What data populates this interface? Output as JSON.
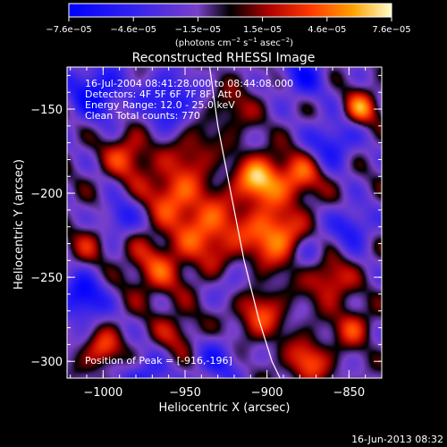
{
  "chart_data": {
    "type": "heatmap",
    "title": "Reconstructed RHESSI Image",
    "xlabel": "Heliocentric X (arcsec)",
    "ylabel": "Heliocentric Y (arcsec)",
    "xlim": [
      -1022,
      -830
    ],
    "ylim": [
      -310,
      -125
    ],
    "x_ticks": [
      -1000,
      -950,
      -900,
      -850
    ],
    "y_ticks": [
      -300,
      -250,
      -200,
      -150
    ],
    "x_tick_labels": [
      "−1000",
      "−950",
      "−900",
      "−850"
    ],
    "y_tick_labels": [
      "−300",
      "−250",
      "−200",
      "−150"
    ],
    "colorbar": {
      "range": [
        -7.6e-05,
        7.6e-05
      ],
      "tick_labels": [
        "−7.6e−05",
        "−4.6e−05",
        "−1.5e−05",
        "1.5e−05",
        "4.6e−05",
        "7.6e−05"
      ],
      "units_parts": [
        "(photons cm",
        "−2",
        " s",
        "−1",
        " asec",
        "−2",
        ")"
      ]
    },
    "annotations": {
      "line1": "16-Jul-2004 08:41:28.000 to 08:44:08.000",
      "line2": "Detectors: 4F 5F 6F 7F 8F, Att 0",
      "line3": "Energy Range: 12.0 - 25.0 keV",
      "line4": "Clean     Total counts: 770",
      "peak": "Position of Peak = [-916,-196]"
    },
    "peak_position": [
      -916,
      -196
    ],
    "limb_curve": [
      [
        -935,
        -125
      ],
      [
        -930,
        -160
      ],
      [
        -922,
        -200
      ],
      [
        -914,
        -240
      ],
      [
        -905,
        -275
      ],
      [
        -897,
        -300
      ],
      [
        -892,
        -310
      ]
    ],
    "sources": [
      {
        "x": -905,
        "y": -192,
        "amplitude": 7.4e-05,
        "sigma": 10
      },
      {
        "x": -895,
        "y": -225,
        "amplitude": 6.6e-05,
        "sigma": 12
      },
      {
        "x": -935,
        "y": -222,
        "amplitude": 5.4e-05,
        "sigma": 15
      },
      {
        "x": -958,
        "y": -200,
        "amplitude": 4.8e-05,
        "sigma": 12
      },
      {
        "x": -985,
        "y": -178,
        "amplitude": 4.6e-05,
        "sigma": 10
      },
      {
        "x": -968,
        "y": -245,
        "amplitude": 4e-05,
        "sigma": 13
      },
      {
        "x": -880,
        "y": -190,
        "amplitude": 5e-05,
        "sigma": 10
      },
      {
        "x": -862,
        "y": -252,
        "amplitude": 4.5e-05,
        "sigma": 10
      },
      {
        "x": -848,
        "y": -280,
        "amplitude": 4.2e-05,
        "sigma": 8
      },
      {
        "x": -875,
        "y": -300,
        "amplitude": 5.2e-05,
        "sigma": 9
      },
      {
        "x": -843,
        "y": -150,
        "amplitude": 5.8e-05,
        "sigma": 7
      },
      {
        "x": -905,
        "y": -272,
        "amplitude": 4.5e-05,
        "sigma": 11
      },
      {
        "x": -1000,
        "y": -293,
        "amplitude": 4.8e-05,
        "sigma": 8
      },
      {
        "x": -1008,
        "y": -230,
        "amplitude": 3e-05,
        "sigma": 8
      },
      {
        "x": -945,
        "y": -175,
        "amplitude": 3.2e-05,
        "sigma": 10
      },
      {
        "x": -920,
        "y": -150,
        "amplitude": 2.6e-05,
        "sigma": 10
      },
      {
        "x": -955,
        "y": -283,
        "amplitude": 3e-05,
        "sigma": 9
      },
      {
        "x": -1005,
        "y": -140,
        "amplitude": -6e-05,
        "sigma": 12
      },
      {
        "x": -960,
        "y": -145,
        "amplitude": -5e-05,
        "sigma": 12
      },
      {
        "x": -1012,
        "y": -262,
        "amplitude": -6.2e-05,
        "sigma": 10
      },
      {
        "x": -990,
        "y": -215,
        "amplitude": -4.5e-05,
        "sigma": 8
      },
      {
        "x": -860,
        "y": -170,
        "amplitude": -5e-05,
        "sigma": 10
      },
      {
        "x": -848,
        "y": -220,
        "amplitude": -4.6e-05,
        "sigma": 9
      },
      {
        "x": -878,
        "y": -130,
        "amplitude": -4.6e-05,
        "sigma": 10
      },
      {
        "x": -930,
        "y": -300,
        "amplitude": -3.8e-05,
        "sigma": 10
      },
      {
        "x": -975,
        "y": -312,
        "amplitude": -4.6e-05,
        "sigma": 10
      },
      {
        "x": -920,
        "y": -255,
        "amplitude": -2.5e-05,
        "sigma": 8
      },
      {
        "x": -873,
        "y": -235,
        "amplitude": -3e-05,
        "sigma": 7
      }
    ]
  },
  "footer": {
    "timestamp": "16-Jun-2013 08:32"
  }
}
